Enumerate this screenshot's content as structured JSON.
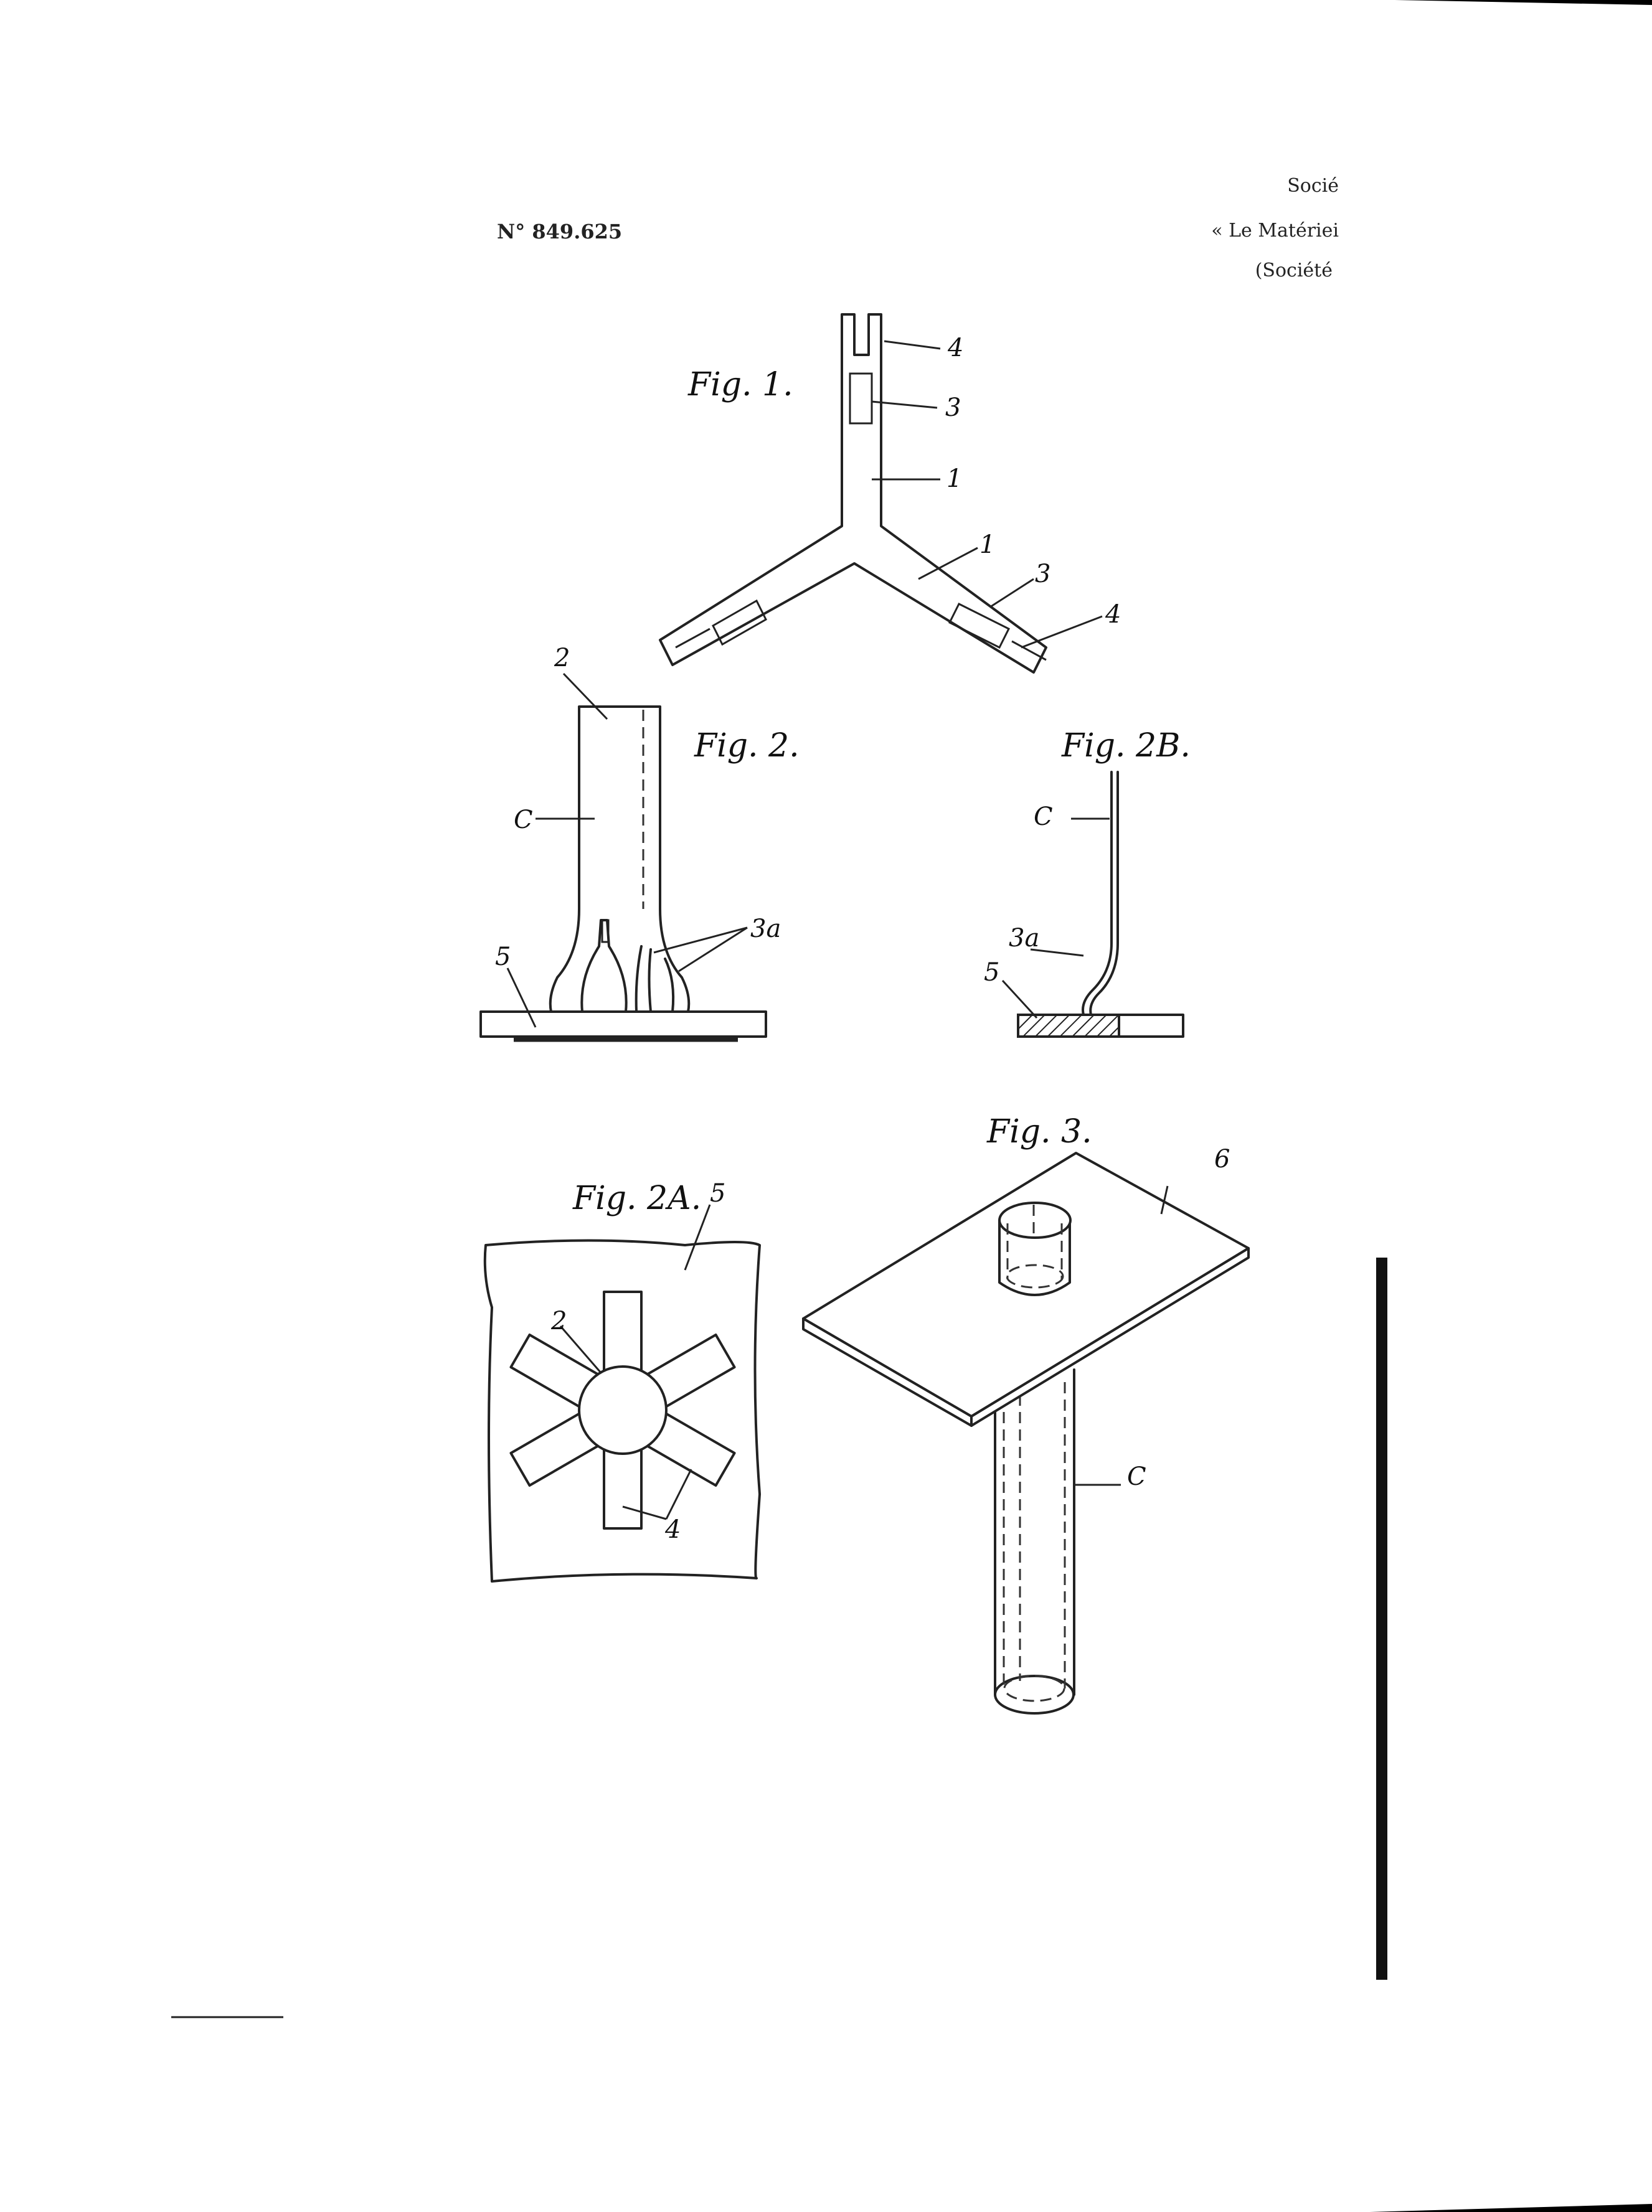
{
  "header": {
    "patent_number": "N° 849.625",
    "line1": "Socié",
    "line2": "« Le Matériei",
    "line3": "(Société"
  },
  "figures": {
    "fig1": {
      "label": "Fig. 1.",
      "refs": [
        "4",
        "3",
        "1",
        "1",
        "3",
        "4"
      ]
    },
    "fig2": {
      "label": "Fig. 2.",
      "refs": [
        "2",
        "C",
        "3a",
        "5"
      ]
    },
    "fig2b": {
      "label": "Fig. 2B.",
      "refs": [
        "C",
        "3a",
        "5"
      ]
    },
    "fig2a": {
      "label": "Fig. 2A.",
      "refs": [
        "5",
        "2",
        "4"
      ]
    },
    "fig3": {
      "label": "Fig. 3.",
      "refs": [
        "6",
        "C"
      ]
    }
  }
}
